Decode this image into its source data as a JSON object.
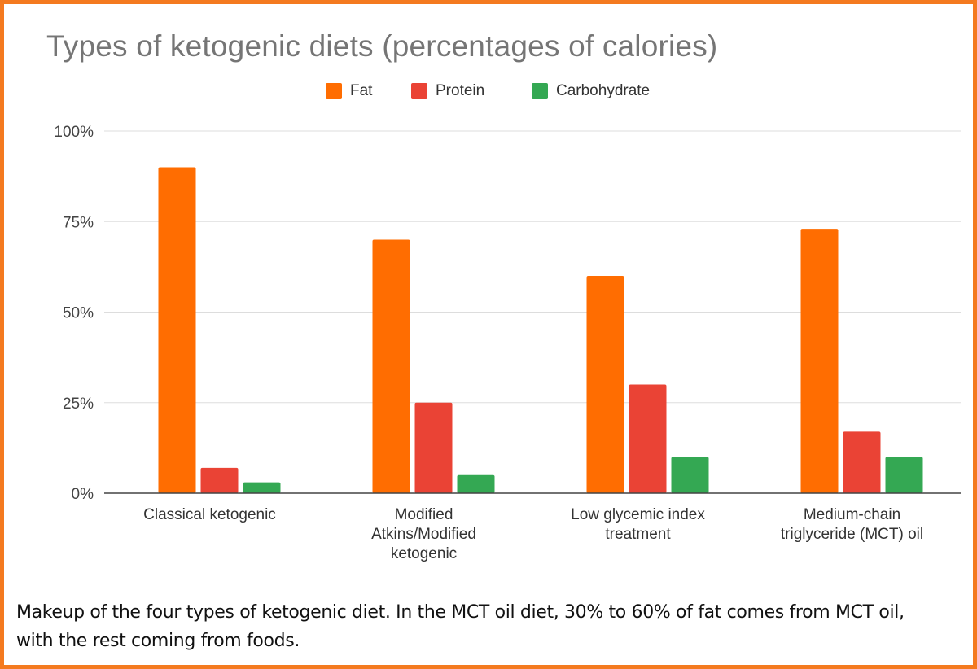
{
  "chart_data": {
    "type": "bar",
    "title": "Types of ketogenic diets (percentages of calories)",
    "xlabel": "",
    "ylabel": "",
    "categories": [
      [
        "Classical ketogenic"
      ],
      [
        "Modified",
        "Atkins/Modified",
        "ketogenic"
      ],
      [
        "Low glycemic index",
        "treatment"
      ],
      [
        "Medium-chain",
        "triglyceride (MCT) oil"
      ]
    ],
    "series": [
      {
        "name": "Fat",
        "color": "#ff6d01",
        "values": [
          90,
          70,
          60,
          73
        ]
      },
      {
        "name": "Protein",
        "color": "#ea4335",
        "values": [
          7,
          25,
          30,
          17
        ]
      },
      {
        "name": "Carbohydrate",
        "color": "#34a853",
        "values": [
          3,
          5,
          10,
          10
        ]
      }
    ],
    "ylim": [
      0,
      100
    ],
    "yticks": [
      0,
      25,
      50,
      75,
      100
    ],
    "ytick_labels": [
      "0%",
      "25%",
      "50%",
      "75%",
      "100%"
    ],
    "grid": true,
    "legend_position": "top-center"
  },
  "caption": {
    "line1": "Makeup of the four types of ketogenic diet. In the MCT oil diet, 30% to 60% of fat comes from MCT oil,",
    "line2": "with the rest coming from foods."
  },
  "colors": {
    "frame": "#f47a1f",
    "gridline": "#dddddd",
    "axis": "#444444",
    "title": "#757575"
  }
}
